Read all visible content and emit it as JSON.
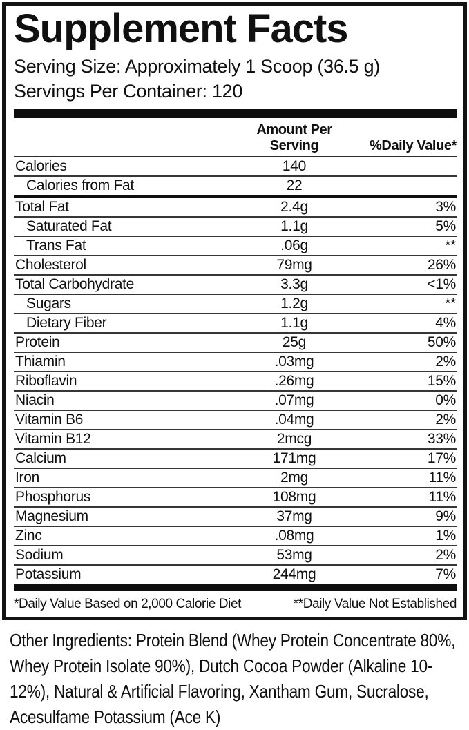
{
  "title": "Supplement Facts",
  "serving": {
    "size_label": "Serving Size: Approximately 1 Scoop (36.5 g)",
    "per_container": "Servings Per Container: 120"
  },
  "table": {
    "headers": {
      "amount": "Amount Per Serving",
      "daily_value": "%Daily Value*"
    },
    "calorie_rows": [
      {
        "name": "Calories",
        "amount": "140",
        "dv": "",
        "indent": false
      },
      {
        "name": "Calories from Fat",
        "amount": "22",
        "dv": "",
        "indent": true
      }
    ],
    "nutrient_rows": [
      {
        "name": "Total Fat",
        "amount": "2.4g",
        "dv": "3%",
        "indent": false
      },
      {
        "name": "Saturated Fat",
        "amount": "1.1g",
        "dv": "5%",
        "indent": true
      },
      {
        "name": "Trans Fat",
        "amount": ".06g",
        "dv": "**",
        "indent": true
      },
      {
        "name": "Cholesterol",
        "amount": "79mg",
        "dv": "26%",
        "indent": false
      },
      {
        "name": "Total Carbohydrate",
        "amount": "3.3g",
        "dv": "<1%",
        "indent": false
      },
      {
        "name": "Sugars",
        "amount": "1.2g",
        "dv": "**",
        "indent": true
      },
      {
        "name": "Dietary Fiber",
        "amount": "1.1g",
        "dv": "4%",
        "indent": true
      },
      {
        "name": "Protein",
        "amount": "25g",
        "dv": "50%",
        "indent": false
      },
      {
        "name": "Thiamin",
        "amount": ".03mg",
        "dv": "2%",
        "indent": false
      },
      {
        "name": "Riboflavin",
        "amount": ".26mg",
        "dv": "15%",
        "indent": false
      },
      {
        "name": "Niacin",
        "amount": ".07mg",
        "dv": "0%",
        "indent": false
      },
      {
        "name": "Vitamin B6",
        "amount": ".04mg",
        "dv": "2%",
        "indent": false
      },
      {
        "name": "Vitamin B12",
        "amount": "2mcg",
        "dv": "33%",
        "indent": false
      },
      {
        "name": "Calcium",
        "amount": "171mg",
        "dv": "17%",
        "indent": false
      },
      {
        "name": "Iron",
        "amount": "2mg",
        "dv": "11%",
        "indent": false
      },
      {
        "name": "Phosphorus",
        "amount": "108mg",
        "dv": "11%",
        "indent": false
      },
      {
        "name": "Magnesium",
        "amount": "37mg",
        "dv": "9%",
        "indent": false
      },
      {
        "name": "Zinc",
        "amount": ".08mg",
        "dv": "1%",
        "indent": false
      },
      {
        "name": "Sodium",
        "amount": "53mg",
        "dv": "2%",
        "indent": false
      },
      {
        "name": "Potassium",
        "amount": "244mg",
        "dv": "7%",
        "indent": false
      }
    ]
  },
  "footnotes": {
    "left": "*Daily Value Based on 2,000 Calorie Diet",
    "right": "**Daily Value Not Established"
  },
  "other_ingredients": "Other Ingredients: Protein Blend (Whey Protein Concentrate 80%, Whey Protein Isolate 90%), Dutch Cocoa Powder (Alkaline 10-12%), Natural & Artificial Flavoring, Xantham Gum, Sucralose, Acesulfame Potassium (Ace K)"
}
